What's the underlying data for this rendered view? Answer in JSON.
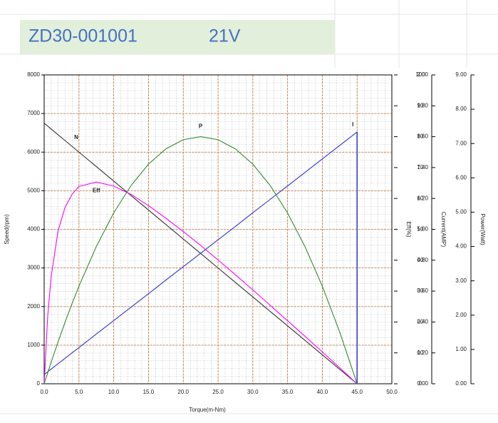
{
  "header": {
    "model": "ZD30-001001",
    "voltage": "21V"
  },
  "chart_data": {
    "type": "line",
    "x_label": "Torque(m-Nm)",
    "y_label": "Speed(rpm)",
    "y2_label": "Eff(%)",
    "y3_label": "Current(AMP)",
    "y4_label": "Power(Watt)",
    "x": [
      0,
      0.5,
      1,
      2,
      3,
      4,
      5,
      7.5,
      10,
      12.5,
      15,
      17.5,
      20,
      22.5,
      25,
      27.5,
      30,
      32.5,
      35,
      37.5,
      40,
      42.5,
      45
    ],
    "series": [
      {
        "name": "N",
        "color": "#333333",
        "axis": "y",
        "values": [
          6750,
          6675,
          6600,
          6450,
          6300,
          6150,
          6000,
          5625,
          5250,
          4875,
          4500,
          4125,
          3750,
          3375,
          3000,
          2625,
          2250,
          1875,
          1500,
          1125,
          750,
          375,
          0
        ]
      },
      {
        "name": "Eff",
        "color": "#ff00ff",
        "axis": "y2",
        "values": [
          0,
          21.6,
          34.6,
          49.5,
          57.1,
          61.3,
          63.9,
          65.3,
          64.0,
          61.3,
          57.7,
          53.6,
          49.3,
          44.8,
          40.1,
          35.3,
          30.4,
          25.4,
          20.4,
          15.4,
          10.3,
          5.2,
          0
        ]
      },
      {
        "name": "I",
        "color": "#3333cc",
        "axis": "y3",
        "values": [
          0.06,
          0.077,
          0.095,
          0.13,
          0.165,
          0.2,
          0.234,
          0.322,
          0.409,
          0.496,
          0.583,
          0.671,
          0.758,
          0.845,
          0.932,
          1.019,
          1.107,
          1.194,
          1.281,
          1.368,
          1.456,
          1.543,
          1.63
        ]
      },
      {
        "name": "P",
        "color": "#2e8b2e",
        "axis": "y4",
        "values": [
          0,
          0.316,
          0.626,
          1.223,
          1.792,
          2.332,
          2.844,
          4.0,
          4.978,
          5.778,
          6.4,
          6.844,
          7.111,
          7.2,
          7.111,
          6.844,
          6.4,
          5.778,
          4.978,
          4.0,
          2.844,
          1.511,
          0
        ]
      }
    ],
    "xlim": [
      0,
      50
    ],
    "xticks": [
      {
        "value": 0,
        "label": "0.0"
      },
      {
        "value": 5,
        "label": "5.0"
      },
      {
        "value": 10,
        "label": "10.0"
      },
      {
        "value": 15,
        "label": "15.0"
      },
      {
        "value": 20,
        "label": "20.0"
      },
      {
        "value": 25,
        "label": "25.0"
      },
      {
        "value": 30,
        "label": "30.0"
      },
      {
        "value": 35,
        "label": "35.0"
      },
      {
        "value": 40,
        "label": "40.0"
      },
      {
        "value": 45,
        "label": "45.0"
      },
      {
        "value": 50,
        "label": "50.0"
      }
    ],
    "ylim": [
      0,
      8000
    ],
    "yticks": [
      0,
      1000,
      2000,
      3000,
      4000,
      5000,
      6000,
      7000,
      8000
    ],
    "y2lim": [
      0,
      100
    ],
    "y2ticks": [
      0,
      10,
      20,
      30,
      40,
      50,
      60,
      70,
      80,
      90,
      100
    ],
    "y3lim": [
      0,
      2
    ],
    "y3ticks": [
      {
        "value": 0,
        "label": "0.00"
      },
      {
        "value": 0.2,
        "label": "0.20"
      },
      {
        "value": 0.4,
        "label": "0.40"
      },
      {
        "value": 0.6,
        "label": "0.60"
      },
      {
        "value": 0.8,
        "label": "0.80"
      },
      {
        "value": 1,
        "label": "1.00"
      },
      {
        "value": 1.2,
        "label": "1.20"
      },
      {
        "value": 1.4,
        "label": "1.40"
      },
      {
        "value": 1.6,
        "label": "1.60"
      },
      {
        "value": 1.8,
        "label": "1.80"
      },
      {
        "value": 2,
        "label": "2.00"
      }
    ],
    "y4lim": [
      0,
      9
    ],
    "y4ticks": [
      {
        "value": 0,
        "label": "0.00"
      },
      {
        "value": 1,
        "label": "1.00"
      },
      {
        "value": 2,
        "label": "2.00"
      },
      {
        "value": 3,
        "label": "3.00"
      },
      {
        "value": 4,
        "label": "4.00"
      },
      {
        "value": 5,
        "label": "5.00"
      },
      {
        "value": 6,
        "label": "6.00"
      },
      {
        "value": 7,
        "label": "7.00"
      },
      {
        "value": 8,
        "label": "8.00"
      },
      {
        "value": 9,
        "label": "9.00"
      }
    ],
    "grid": true
  }
}
